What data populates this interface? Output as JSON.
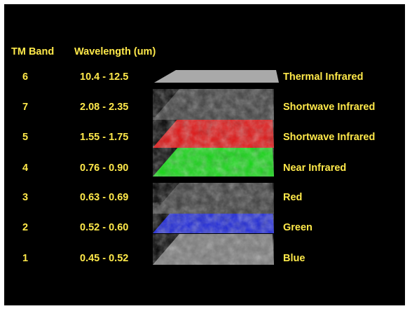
{
  "headers": {
    "band": "TM Band",
    "wavelength": "Wavelength (um)"
  },
  "colors": {
    "text": "#ffe94a",
    "background": "#000000"
  },
  "rows": [
    {
      "band": "6",
      "wavelength": "10.4 - 12.5",
      "name": "Thermal Infrared",
      "layer_color": "#a9a9a9",
      "style": "flat-gray"
    },
    {
      "band": "7",
      "wavelength": "2.08 - 2.35",
      "name": "Shortwave Infrared",
      "layer_color": "#3c3c3c",
      "style": "dark-gray"
    },
    {
      "band": "5",
      "wavelength": "1.55 - 1.75",
      "name": "Shortwave Infrared",
      "layer_color": "#e01010",
      "style": "red"
    },
    {
      "band": "4",
      "wavelength": "0.76 - 0.90",
      "name": "Near Infrared",
      "layer_color": "#12d612",
      "style": "green"
    },
    {
      "band": "3",
      "wavelength": "0.63 - 0.69",
      "name": "Red",
      "layer_color": "#3a3a3a",
      "style": "dark-gray"
    },
    {
      "band": "2",
      "wavelength": "0.52 - 0.60",
      "name": "Green",
      "layer_color": "#1a24d8",
      "style": "blue"
    },
    {
      "band": "1",
      "wavelength": "0.45 - 0.52",
      "name": "Blue",
      "layer_color": "#7a7a7a",
      "style": "gray"
    }
  ]
}
